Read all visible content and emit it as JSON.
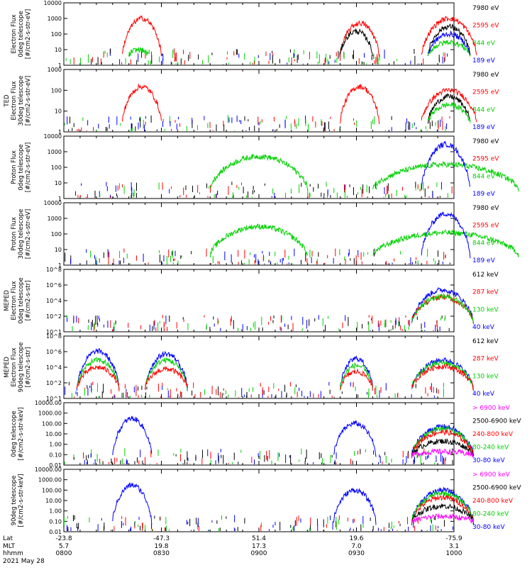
{
  "colors": {
    "black": "#000000",
    "red": "#ff0000",
    "green": "#00d000",
    "blue": "#0000ff",
    "magenta": "#ff00ff"
  },
  "panels": [
    {
      "id": "ted-e-0",
      "ylabel": [
        "",
        "Electron Flux",
        "0deg telescope",
        "[#/cm2-s-str-eV]"
      ],
      "ticks": [
        "10000",
        "1000",
        "100",
        "10",
        "1"
      ],
      "log": true,
      "ymin": 1,
      "ymax": 10000,
      "legend": [
        {
          "text": "7980 eV",
          "color": "black"
        },
        {
          "text": "2595 eV",
          "color": "red"
        },
        {
          "text": "844 eV",
          "color": "green"
        },
        {
          "text": "189 eV",
          "color": "blue"
        }
      ]
    },
    {
      "id": "ted-e-30",
      "ylabel": [
        "TED",
        "Electron Flux",
        "30deg telescope",
        "[#/cm2-s-str-eV]"
      ],
      "ticks": [
        "1000",
        "100",
        "10",
        "1"
      ],
      "log": true,
      "ymin": 1,
      "ymax": 1000,
      "legend": [
        {
          "text": "7980 eV",
          "color": "black"
        },
        {
          "text": "2595 eV",
          "color": "red"
        },
        {
          "text": "844 eV",
          "color": "green"
        },
        {
          "text": "189 eV",
          "color": "blue"
        }
      ]
    },
    {
      "id": "ted-p-0",
      "ylabel": [
        "",
        "Proton Flux",
        "0deg telescope",
        "[#/cm2-s-str-eV]"
      ],
      "ticks": [
        "10000",
        "1000",
        "100",
        "10",
        "1"
      ],
      "log": true,
      "ymin": 1,
      "ymax": 10000,
      "legend": [
        {
          "text": "7980 eV",
          "color": "black"
        },
        {
          "text": "2595 eV",
          "color": "red"
        },
        {
          "text": "844 eV",
          "color": "green"
        },
        {
          "text": "189 eV",
          "color": "blue"
        }
      ]
    },
    {
      "id": "ted-p-30",
      "ylabel": [
        "",
        "Proton Flux",
        "30deg telescope",
        "[#/cm2-s-str-eV]"
      ],
      "ticks": [
        "10000",
        "1000",
        "100",
        "10",
        "1"
      ],
      "log": true,
      "ymin": 1,
      "ymax": 10000,
      "legend": [
        {
          "text": "7980 eV",
          "color": "black"
        },
        {
          "text": "2595 eV",
          "color": "red"
        },
        {
          "text": "844 eV",
          "color": "green"
        },
        {
          "text": "189 eV",
          "color": "blue"
        }
      ]
    },
    {
      "id": "mep-e-0",
      "ylabel": [
        "MEPED",
        "Electron Flux",
        "0deg telescope",
        "[#/cm2-s-str]"
      ],
      "ticks": [
        "10^8",
        "10^6",
        "10^4",
        "10^2",
        "10^1"
      ],
      "log": true,
      "ymin": 10,
      "ymax": 100000000,
      "legend": [
        {
          "text": "612 keV",
          "color": "black"
        },
        {
          "text": "287 keV",
          "color": "red"
        },
        {
          "text": "130 keV",
          "color": "green"
        },
        {
          "text": "40 keV",
          "color": "blue"
        }
      ]
    },
    {
      "id": "mep-e-90",
      "ylabel": [
        "MEPED",
        "Electron Flux",
        "90deg telescope",
        "[#/cm2-s-str]"
      ],
      "ticks": [
        "10^8",
        "10^6",
        "10^4",
        "10^2",
        "10^1"
      ],
      "log": true,
      "ymin": 10,
      "ymax": 100000000,
      "legend": [
        {
          "text": "612 keV",
          "color": "black"
        },
        {
          "text": "287 keV",
          "color": "red"
        },
        {
          "text": "130 keV",
          "color": "green"
        },
        {
          "text": "40 keV",
          "color": "blue"
        }
      ]
    },
    {
      "id": "mep-p-0",
      "ylabel": [
        "",
        "0deg telescope",
        "[#/cm2-s-str-keV]",
        ""
      ],
      "ticks": [
        "10000.00",
        "1000.00",
        "100.00",
        "10.00",
        "1.00",
        "0.10",
        "0.01"
      ],
      "log": true,
      "ymin": 0.01,
      "ymax": 10000,
      "legend": [
        {
          "text": "> 6900 keV",
          "color": "magenta"
        },
        {
          "text": "2500-6900 keV",
          "color": "black"
        },
        {
          "text": "240-800 keV",
          "color": "red"
        },
        {
          "text": "80-240 keV",
          "color": "green"
        },
        {
          "text": "30-80 keV",
          "color": "blue"
        }
      ]
    },
    {
      "id": "mep-p-90",
      "ylabel": [
        "",
        "90deg telescope",
        "[#/cm2-s-str-keV]",
        ""
      ],
      "ticks": [
        "10000.00",
        "1000.00",
        "100.00",
        "10.00",
        "1.00",
        "0.10",
        "0.01"
      ],
      "log": true,
      "ymin": 0.01,
      "ymax": 10000,
      "legend": [
        {
          "text": "> 6900 keV",
          "color": "magenta"
        },
        {
          "text": "2500-6900 keV",
          "color": "black"
        },
        {
          "text": "240-800 keV",
          "color": "red"
        },
        {
          "text": "80-240 keV",
          "color": "green"
        },
        {
          "text": "30-80 keV",
          "color": "blue"
        }
      ]
    }
  ],
  "xaxis": {
    "row_labels": [
      "Lat",
      "MLT",
      "hhmm",
      "2021 May 28"
    ],
    "ticks": [
      {
        "lat": "-23.8",
        "mlt": "5.7",
        "hhmm": "0800"
      },
      {
        "lat": "-47.3",
        "mlt": "19.8",
        "hhmm": "0830"
      },
      {
        "lat": "51.4",
        "mlt": "17.3",
        "hhmm": "0900"
      },
      {
        "lat": "19.6",
        "mlt": "7.0",
        "hhmm": "0930"
      },
      {
        "lat": "-75.9",
        "mlt": "3.1",
        "hhmm": "1000"
      }
    ]
  },
  "chart_data": {
    "type": "line",
    "x_range_minutes": [
      0,
      120
    ],
    "x_unit": "minutes after 0800 UT",
    "series_profiles": [
      {
        "panel": "ted-e-0",
        "name": "2595 eV",
        "color": "red",
        "segments": [
          [
            18,
            30,
            1000
          ],
          [
            85,
            97,
            500
          ],
          [
            110,
            127,
            1000
          ]
        ]
      },
      {
        "panel": "ted-e-0",
        "name": "7980 eV",
        "color": "black",
        "segments": [
          [
            85,
            95,
            150
          ],
          [
            112,
            125,
            300
          ]
        ]
      },
      {
        "panel": "ted-e-0",
        "name": "844 eV",
        "color": "green",
        "segments": [
          [
            20,
            26,
            10
          ],
          [
            112,
            125,
            30
          ]
        ]
      },
      {
        "panel": "ted-e-0",
        "name": "189 eV",
        "color": "blue",
        "segments": [
          [
            112,
            125,
            100
          ]
        ]
      },
      {
        "panel": "ted-e-30",
        "name": "2595 eV",
        "color": "red",
        "segments": [
          [
            18,
            30,
            150
          ],
          [
            85,
            97,
            150
          ],
          [
            110,
            127,
            100
          ]
        ]
      },
      {
        "panel": "ted-e-30",
        "name": "7980 eV",
        "color": "black",
        "segments": [
          [
            112,
            125,
            50
          ]
        ]
      },
      {
        "panel": "ted-e-30",
        "name": "844 eV",
        "color": "green",
        "segments": [
          [
            112,
            125,
            20
          ]
        ]
      },
      {
        "panel": "ted-p-0",
        "name": "844 eV",
        "color": "green",
        "segments": [
          [
            45,
            75,
            500
          ],
          [
            95,
            140,
            150
          ]
        ]
      },
      {
        "panel": "ted-p-0",
        "name": "189 eV",
        "color": "blue",
        "segments": [
          [
            110,
            125,
            3000
          ]
        ]
      },
      {
        "panel": "ted-p-30",
        "name": "844 eV",
        "color": "green",
        "segments": [
          [
            45,
            75,
            300
          ],
          [
            95,
            140,
            120
          ]
        ]
      },
      {
        "panel": "ted-p-30",
        "name": "189 eV",
        "color": "blue",
        "segments": [
          [
            110,
            125,
            2000
          ]
        ]
      },
      {
        "panel": "mep-e-0",
        "name": "40 keV",
        "color": "blue",
        "segments": [
          [
            107,
            126,
            500000
          ]
        ]
      },
      {
        "panel": "mep-e-0",
        "name": "287 keV",
        "color": "red",
        "segments": [
          [
            107,
            126,
            80000
          ]
        ]
      },
      {
        "panel": "mep-e-0",
        "name": "130 keV",
        "color": "green",
        "segments": [
          [
            107,
            126,
            100000
          ]
        ]
      },
      {
        "panel": "mep-e-90",
        "name": "40 keV",
        "color": "blue",
        "segments": [
          [
            4,
            17,
            2000000
          ],
          [
            25,
            38,
            1000000
          ],
          [
            85,
            95,
            300000
          ],
          [
            107,
            126,
            200000
          ]
        ]
      },
      {
        "panel": "mep-e-90",
        "name": "130 keV",
        "color": "green",
        "segments": [
          [
            4,
            17,
            200000
          ],
          [
            25,
            38,
            200000
          ],
          [
            85,
            95,
            50000
          ],
          [
            107,
            126,
            100000
          ]
        ]
      },
      {
        "panel": "mep-e-90",
        "name": "287 keV",
        "color": "red",
        "segments": [
          [
            4,
            17,
            30000
          ],
          [
            25,
            38,
            20000
          ],
          [
            85,
            95,
            10000
          ],
          [
            107,
            126,
            40000
          ]
        ]
      },
      {
        "panel": "mep-p-0",
        "name": "30-80 keV",
        "color": "blue",
        "segments": [
          [
            15,
            27,
            300
          ],
          [
            83,
            96,
            100
          ],
          [
            107,
            126,
            50
          ]
        ]
      },
      {
        "panel": "mep-p-0",
        "name": "80-240 keV",
        "color": "green",
        "segments": [
          [
            107,
            126,
            30
          ]
        ]
      },
      {
        "panel": "mep-p-0",
        "name": "240-800 keV",
        "color": "red",
        "segments": [
          [
            107,
            126,
            15
          ]
        ]
      },
      {
        "panel": "mep-p-0",
        "name": "2500-6900 keV",
        "color": "black",
        "segments": [
          [
            107,
            126,
            2
          ]
        ]
      },
      {
        "panel": "mep-p-0",
        "name": "> 6900 keV",
        "color": "magenta",
        "segments": [
          [
            107,
            126,
            0.2
          ]
        ]
      },
      {
        "panel": "mep-p-90",
        "name": "30-80 keV",
        "color": "blue",
        "segments": [
          [
            15,
            27,
            300
          ],
          [
            83,
            96,
            100
          ],
          [
            107,
            126,
            100
          ]
        ]
      },
      {
        "panel": "mep-p-90",
        "name": "80-240 keV",
        "color": "green",
        "segments": [
          [
            107,
            126,
            50
          ]
        ]
      },
      {
        "panel": "mep-p-90",
        "name": "240-800 keV",
        "color": "red",
        "segments": [
          [
            107,
            126,
            20
          ]
        ]
      },
      {
        "panel": "mep-p-90",
        "name": "2500-6900 keV",
        "color": "black",
        "segments": [
          [
            107,
            126,
            3
          ]
        ]
      },
      {
        "panel": "mep-p-90",
        "name": "> 6900 keV",
        "color": "magenta",
        "segments": [
          [
            107,
            126,
            0.3
          ]
        ]
      }
    ]
  }
}
